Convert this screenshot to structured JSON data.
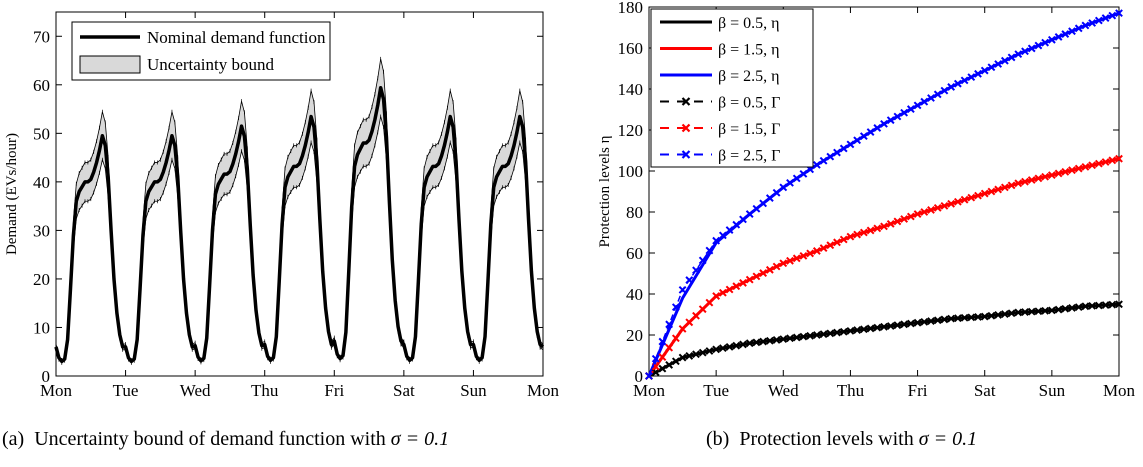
{
  "captions": {
    "a": {
      "label": "(a)",
      "text": "Uncertainty bound of demand function with",
      "math": "σ = 0.1"
    },
    "b": {
      "label": "(b)",
      "text": "Protection levels with",
      "math": "σ = 0.1"
    }
  },
  "chart_data": [
    {
      "type": "line",
      "title": "",
      "xlabel": "",
      "ylabel": "Demand (EVs/hour)",
      "x_ticks": [
        "Mon",
        "Tue",
        "Wed",
        "Thu",
        "Fri",
        "Sat",
        "Sun",
        "Mon"
      ],
      "ylim": [
        0,
        75
      ],
      "y_ticks": [
        0,
        10,
        20,
        30,
        40,
        50,
        60,
        70
      ],
      "grid": false,
      "legend": {
        "position": "top-left",
        "entries": [
          "Nominal demand function",
          "Uncertainty bound"
        ]
      },
      "colors": {
        "nominal": "#000000",
        "band": "#d9d9d9"
      },
      "daily_shape": {
        "hours": [
          0,
          1,
          2,
          3,
          4,
          5,
          6,
          7,
          8,
          9,
          10,
          11,
          12,
          13,
          14,
          15,
          16,
          17,
          18,
          19,
          20,
          21,
          22,
          23,
          24
        ],
        "rel_values": [
          0.12,
          0.075,
          0.06,
          0.07,
          0.15,
          0.36,
          0.58,
          0.72,
          0.76,
          0.78,
          0.8,
          0.8,
          0.81,
          0.84,
          0.88,
          0.93,
          0.99,
          0.95,
          0.82,
          0.6,
          0.4,
          0.26,
          0.17,
          0.12,
          0.1
        ]
      },
      "series": [
        {
          "name": "Nominal demand function",
          "daily_peaks": [
            50,
            50,
            52,
            54,
            60,
            54,
            54
          ],
          "first_value": 6,
          "last_value": 6
        },
        {
          "name": "Uncertainty bound",
          "relative_half_width": 0.1
        }
      ]
    },
    {
      "type": "line",
      "title": "",
      "xlabel": "",
      "ylabel": "Protection levels η",
      "x_ticks": [
        "Mon",
        "Tue",
        "Wed",
        "Thu",
        "Fri",
        "Sat",
        "Sun",
        "Mon"
      ],
      "ylim": [
        0,
        180
      ],
      "y_ticks": [
        0,
        20,
        40,
        60,
        80,
        100,
        120,
        140,
        160,
        180
      ],
      "grid": false,
      "legend": {
        "position": "top-left"
      },
      "x_days": [
        0,
        0.5,
        1,
        1.5,
        2,
        2.5,
        3,
        3.5,
        4,
        4.5,
        5,
        5.5,
        6,
        6.5,
        7
      ],
      "series": [
        {
          "name": "β = 0.5, η",
          "color": "#000000",
          "style": "solid",
          "marker": "none",
          "values": [
            0,
            9,
            13,
            16,
            18,
            20,
            22,
            24,
            26,
            28,
            29,
            31,
            32,
            34,
            35
          ]
        },
        {
          "name": "β = 1.5, η",
          "color": "#ff0000",
          "style": "solid",
          "marker": "none",
          "values": [
            0,
            23,
            39,
            47,
            55,
            61,
            68,
            73,
            79,
            84,
            89,
            94,
            98,
            102,
            106
          ]
        },
        {
          "name": "β = 2.5, η",
          "color": "#0000ff",
          "style": "solid",
          "marker": "none",
          "values": [
            0,
            38,
            65,
            79,
            92,
            103,
            113,
            123,
            132,
            141,
            149,
            157,
            164,
            171,
            177
          ]
        },
        {
          "name": "β = 0.5, Γ",
          "color": "#000000",
          "style": "dashed",
          "marker": "x",
          "values": [
            0,
            9,
            13,
            16,
            18,
            20,
            22,
            24,
            26,
            28,
            29,
            31,
            32,
            34,
            35
          ]
        },
        {
          "name": "β = 1.5, Γ",
          "color": "#ff0000",
          "style": "dashed",
          "marker": "x",
          "values": [
            0,
            23,
            39,
            47,
            55,
            61,
            68,
            73,
            79,
            84,
            89,
            94,
            98,
            102,
            106
          ]
        },
        {
          "name": "β = 2.5, Γ",
          "color": "#0000ff",
          "style": "dashed",
          "marker": "x",
          "values": [
            0,
            42,
            66,
            79,
            92,
            103,
            113,
            123,
            132,
            141,
            149,
            157,
            164,
            171,
            177
          ]
        }
      ]
    }
  ]
}
